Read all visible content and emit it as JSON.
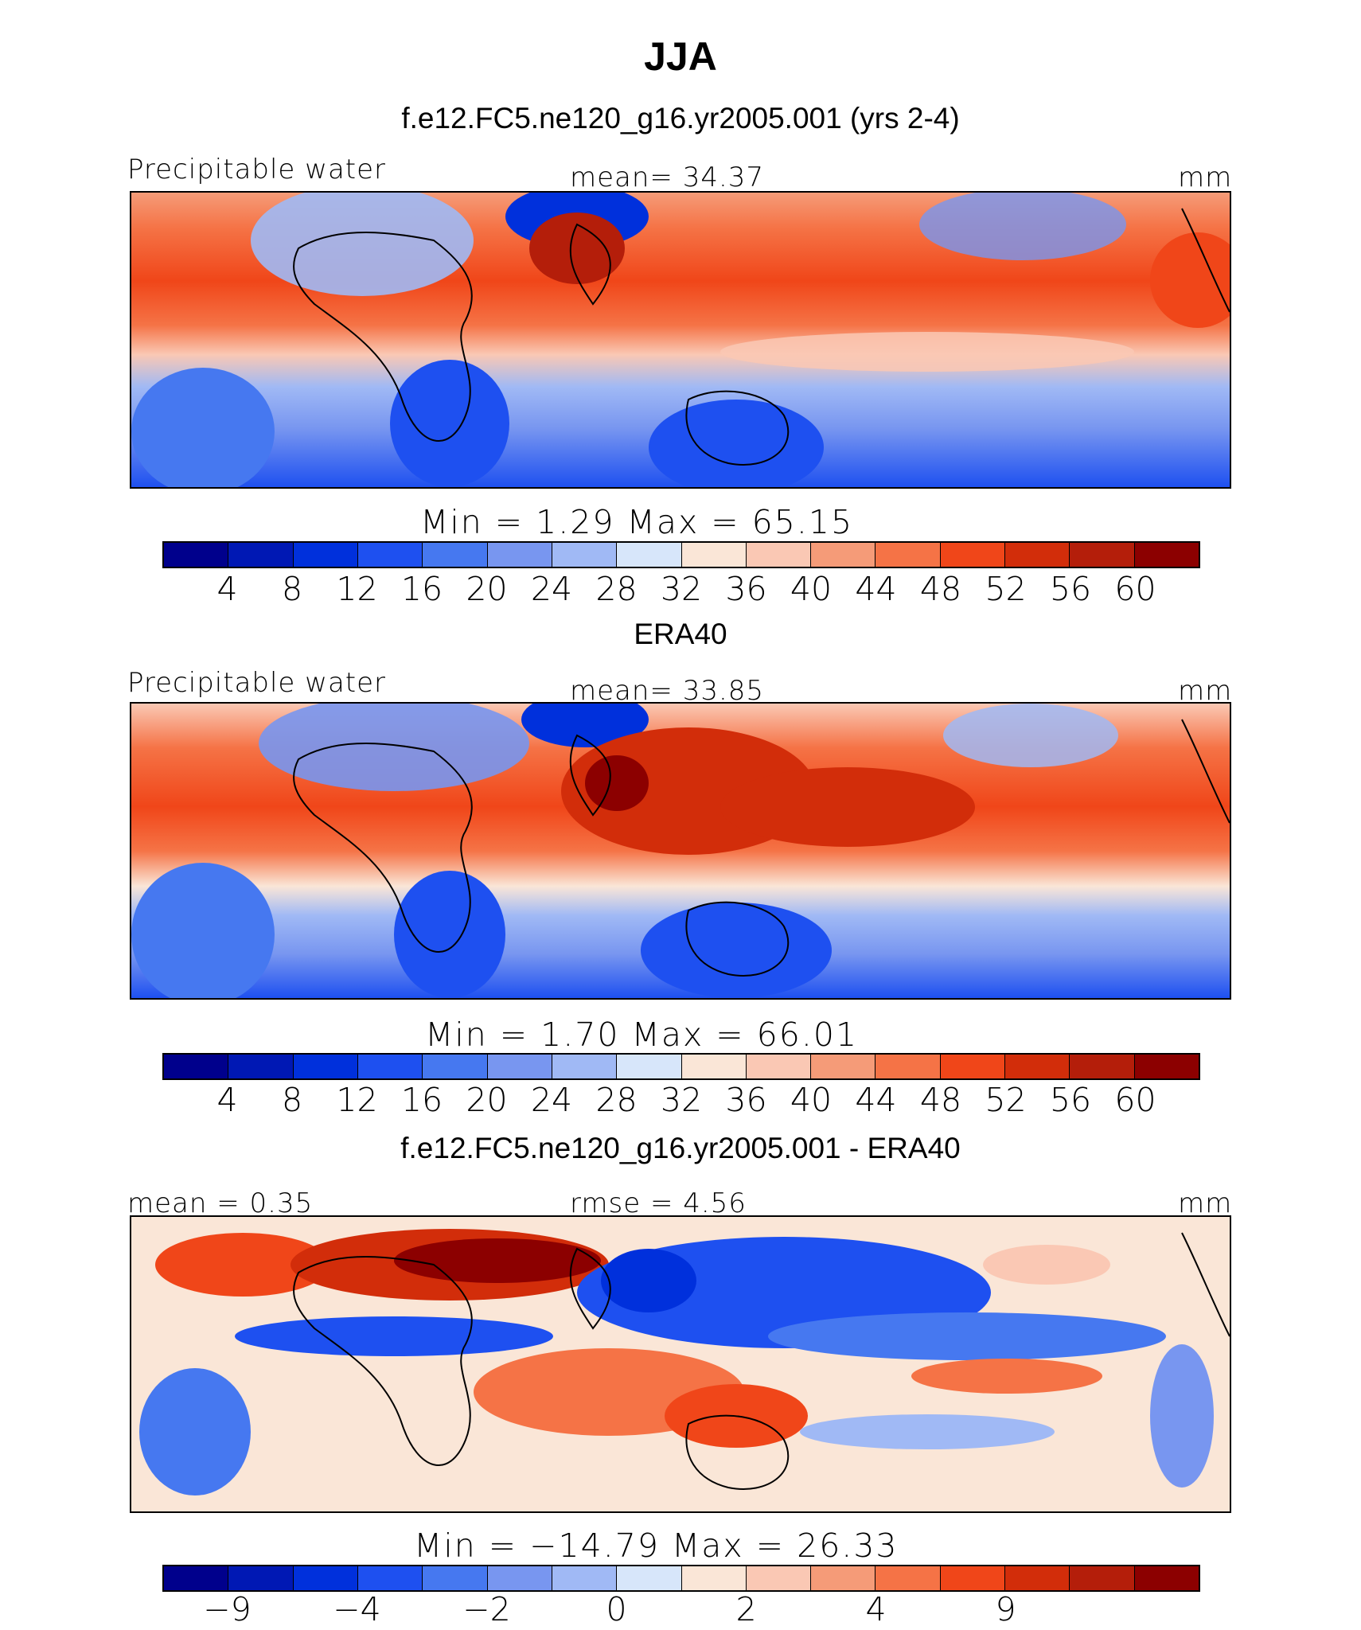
{
  "title": "JJA",
  "colors": {
    "scale": [
      "#00008c",
      "#0018b4",
      "#0030dc",
      "#1e50f0",
      "#4678f0",
      "#7896f0",
      "#a0b9f5",
      "#d7e6fa",
      "#fae6d7",
      "#fac8b4",
      "#f59b78",
      "#f57346",
      "#f04619",
      "#d22d0a",
      "#b41e0a",
      "#8c0000"
    ]
  },
  "panels": [
    {
      "subtitle": "f.e12.FC5.ne120_g16.yr2005.001 (yrs 2-4)",
      "label_left": "Precipitable water",
      "label_center": "mean=   34.37",
      "label_right": "mm",
      "stats": "Min  =    1.29  Max  =   65.15",
      "ticks": [
        "4",
        "8",
        "12",
        "16",
        "20",
        "24",
        "28",
        "32",
        "36",
        "40",
        "44",
        "48",
        "52",
        "56",
        "60"
      ],
      "kind": "model"
    },
    {
      "subtitle": "ERA40",
      "label_left": "Precipitable water",
      "label_center": "mean=   33.85",
      "label_right": "mm",
      "stats": "Min  =    1.70  Max  =   66.01",
      "ticks": [
        "4",
        "8",
        "12",
        "16",
        "20",
        "24",
        "28",
        "32",
        "36",
        "40",
        "44",
        "48",
        "52",
        "56",
        "60"
      ],
      "kind": "obs"
    },
    {
      "subtitle": "f.e12.FC5.ne120_g16.yr2005.001 - ERA40",
      "label_left": "mean =    0.35",
      "label_center": "rmse =    4.56",
      "label_right": "mm",
      "stats": "Min  = −14.79  Max  =   26.33",
      "ticks": [
        "−9",
        "−4",
        "−2",
        "0",
        "2",
        "4",
        "9"
      ],
      "kind": "diff"
    }
  ]
}
